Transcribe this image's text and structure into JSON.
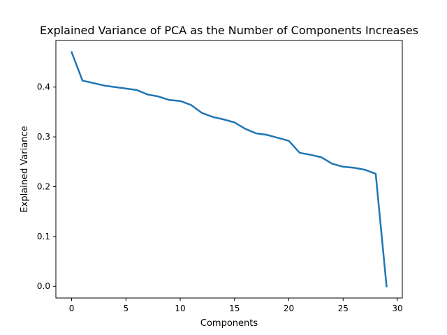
{
  "chart_data": {
    "type": "line",
    "title": "Explained Variance of PCA as the Number of Components Increases",
    "xlabel": "Components",
    "ylabel": "Explained Variance",
    "xlim": [
      -1.45,
      30.45
    ],
    "ylim": [
      -0.0235,
      0.4935
    ],
    "xticks": [
      0,
      5,
      10,
      15,
      20,
      25,
      30
    ],
    "xtick_labels": [
      "0",
      "5",
      "10",
      "15",
      "20",
      "25",
      "30"
    ],
    "yticks": [
      0.0,
      0.1,
      0.2,
      0.3,
      0.4
    ],
    "ytick_labels": [
      "0.0",
      "0.1",
      "0.2",
      "0.3",
      "0.4"
    ],
    "grid": false,
    "line_color": "#1f77b4",
    "series": [
      {
        "x": [
          0,
          1,
          2,
          3,
          4,
          5,
          6,
          7,
          8,
          9,
          10,
          11,
          12,
          13,
          14,
          15,
          16,
          17,
          18,
          19,
          20,
          21,
          22,
          23,
          24,
          25,
          26,
          27,
          28,
          29
        ],
        "values": [
          0.47,
          0.413,
          0.408,
          0.403,
          0.4,
          0.397,
          0.394,
          0.385,
          0.381,
          0.374,
          0.372,
          0.364,
          0.348,
          0.34,
          0.335,
          0.329,
          0.316,
          0.307,
          0.304,
          0.298,
          0.292,
          0.268,
          0.264,
          0.259,
          0.246,
          0.24,
          0.238,
          0.234,
          0.226,
          0.0
        ]
      }
    ]
  }
}
